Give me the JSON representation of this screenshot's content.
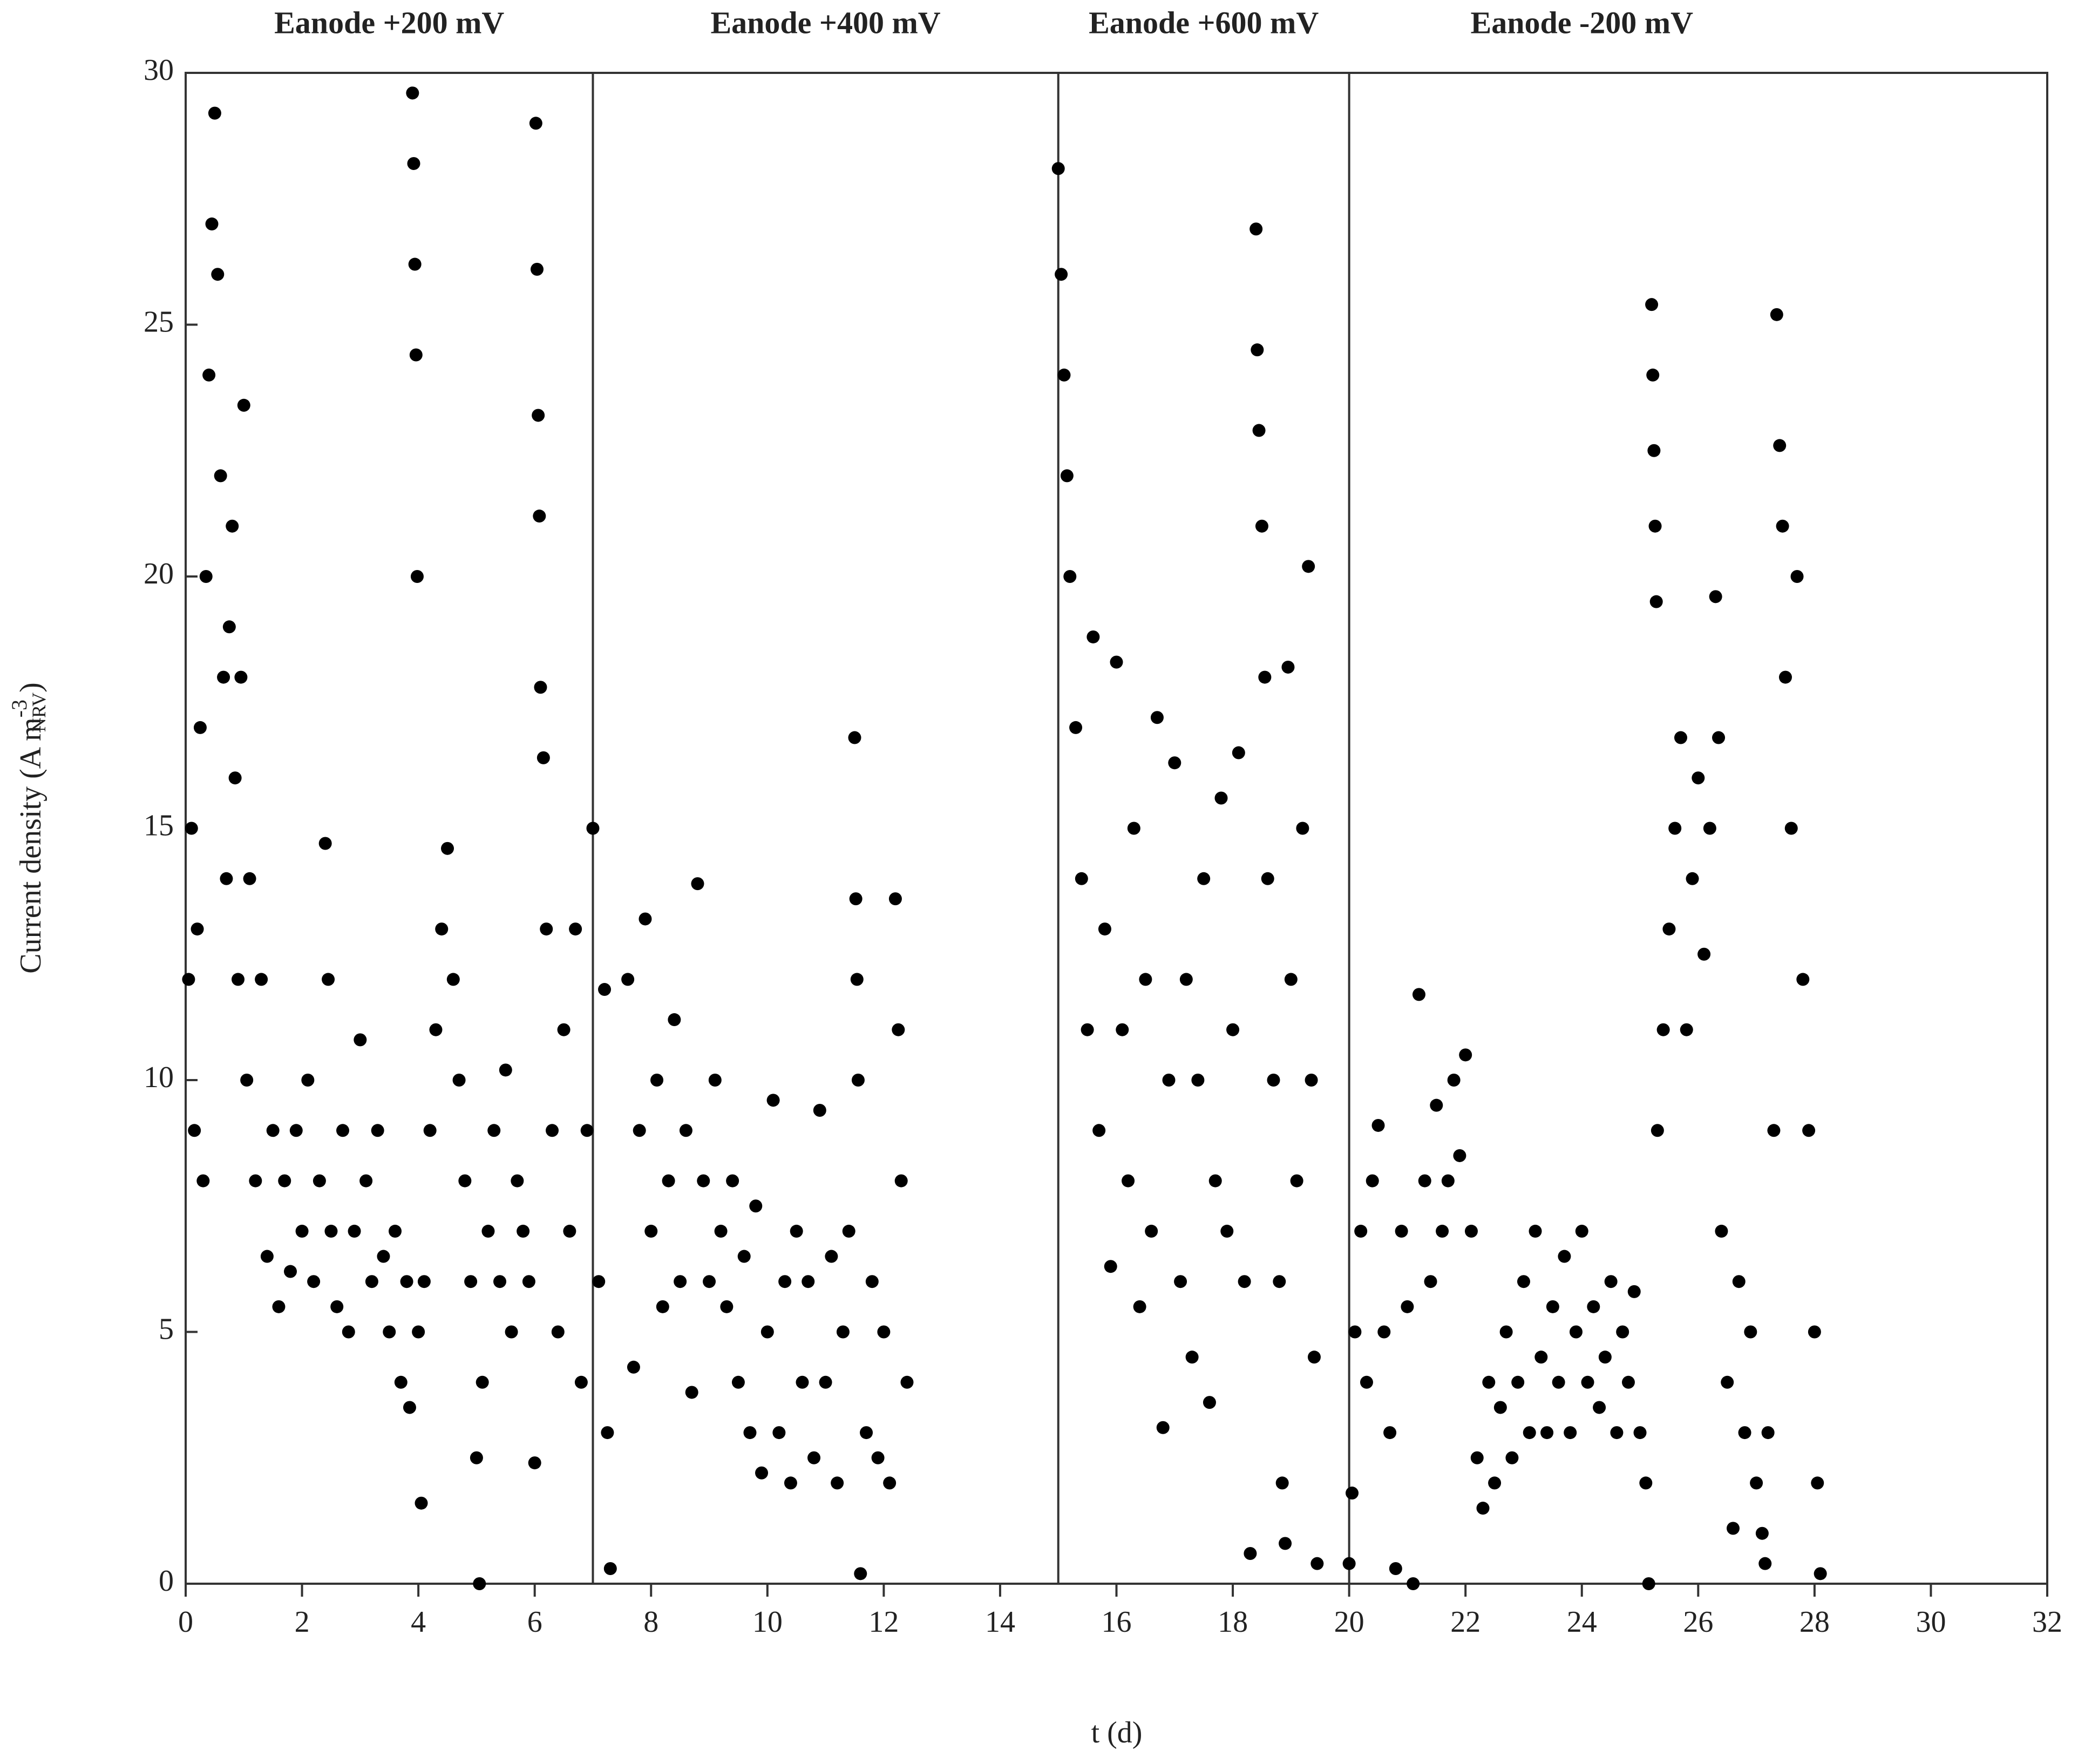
{
  "chart_data": {
    "type": "scatter",
    "x_label": "t (d)",
    "y_label": {
      "text": "Current density (A m",
      "sup": "-3",
      "sub": "NRV",
      "end": ")"
    },
    "color": "#000000",
    "xlim": [
      0,
      32
    ],
    "xticks": [
      0,
      2,
      4,
      6,
      8,
      10,
      12,
      14,
      16,
      18,
      20,
      22,
      24,
      26,
      28,
      30,
      32
    ],
    "ylim": [
      0,
      30
    ],
    "yticks": [
      0,
      5,
      10,
      15,
      20,
      25,
      30
    ],
    "phases": [
      {
        "label": "Eanode +200 mV",
        "start": 0,
        "end": 7
      },
      {
        "label": "Eanode +400 mV",
        "start": 7,
        "end": 15
      },
      {
        "label": "Eanode +600 mV",
        "start": 15,
        "end": 20
      },
      {
        "label": "Eanode -200 mV",
        "start": 20,
        "end": 28
      }
    ],
    "x": [
      0.05,
      0.1,
      0.15,
      0.2,
      0.25,
      0.3,
      0.35,
      0.4,
      0.45,
      0.5,
      0.55,
      0.6,
      0.65,
      0.7,
      0.75,
      0.8,
      0.85,
      0.9,
      0.95,
      1.0,
      1.05,
      1.1,
      1.2,
      1.3,
      1.4,
      1.5,
      1.6,
      1.7,
      1.8,
      1.9,
      2.0,
      2.1,
      2.2,
      2.3,
      2.4,
      2.45,
      2.5,
      2.6,
      2.7,
      2.8,
      2.9,
      3.0,
      3.1,
      3.2,
      3.3,
      3.4,
      3.5,
      3.6,
      3.7,
      3.8,
      3.85,
      3.9,
      3.92,
      3.94,
      3.96,
      3.98,
      4.0,
      4.05,
      4.1,
      4.2,
      4.3,
      4.4,
      4.5,
      4.6,
      4.7,
      4.8,
      4.9,
      5.0,
      5.05,
      5.1,
      5.2,
      5.3,
      5.4,
      5.5,
      5.6,
      5.7,
      5.8,
      5.9,
      6.0,
      6.02,
      6.04,
      6.06,
      6.08,
      6.1,
      6.15,
      6.2,
      6.3,
      6.4,
      6.5,
      6.6,
      6.7,
      6.8,
      6.9,
      7.0,
      7.1,
      7.2,
      7.25,
      7.3,
      7.6,
      7.7,
      7.8,
      7.9,
      8.0,
      8.1,
      8.2,
      8.3,
      8.4,
      8.5,
      8.6,
      8.7,
      8.8,
      8.9,
      9.0,
      9.1,
      9.2,
      9.3,
      9.4,
      9.5,
      9.6,
      9.7,
      9.8,
      9.9,
      10.0,
      10.1,
      10.2,
      10.3,
      10.4,
      10.5,
      10.6,
      10.7,
      10.8,
      10.9,
      11.0,
      11.1,
      11.2,
      11.3,
      11.4,
      11.5,
      11.52,
      11.54,
      11.56,
      11.6,
      11.7,
      11.8,
      11.9,
      12.0,
      12.1,
      12.2,
      12.25,
      12.3,
      12.4,
      15.0,
      15.05,
      15.1,
      15.15,
      15.2,
      15.3,
      15.4,
      15.5,
      15.6,
      15.7,
      15.8,
      15.9,
      16.0,
      16.1,
      16.2,
      16.3,
      16.4,
      16.5,
      16.6,
      16.7,
      16.8,
      16.9,
      17.0,
      17.1,
      17.2,
      17.3,
      17.4,
      17.5,
      17.6,
      17.7,
      17.8,
      17.9,
      18.0,
      18.1,
      18.2,
      18.3,
      18.4,
      18.42,
      18.45,
      18.5,
      18.55,
      18.6,
      18.7,
      18.8,
      18.85,
      18.9,
      18.95,
      19.0,
      19.1,
      19.2,
      19.3,
      19.35,
      19.4,
      19.45,
      20.0,
      20.05,
      20.1,
      20.2,
      20.3,
      20.4,
      20.5,
      20.6,
      20.7,
      20.8,
      20.9,
      21.0,
      21.1,
      21.2,
      21.3,
      21.4,
      21.5,
      21.6,
      21.7,
      21.8,
      21.9,
      22.0,
      22.1,
      22.2,
      22.3,
      22.4,
      22.5,
      22.6,
      22.7,
      22.8,
      22.9,
      23.0,
      23.1,
      23.2,
      23.3,
      23.4,
      23.5,
      23.6,
      23.7,
      23.8,
      23.9,
      24.0,
      24.1,
      24.2,
      24.3,
      24.4,
      24.5,
      24.6,
      24.7,
      24.8,
      24.9,
      25.0,
      25.1,
      25.15,
      25.2,
      25.22,
      25.24,
      25.26,
      25.28,
      25.3,
      25.4,
      25.5,
      25.6,
      25.7,
      25.8,
      25.9,
      26.0,
      26.1,
      26.2,
      26.3,
      26.35,
      26.4,
      26.5,
      26.6,
      26.7,
      26.8,
      26.9,
      27.0,
      27.1,
      27.15,
      27.2,
      27.3,
      27.35,
      27.4,
      27.45,
      27.5,
      27.6,
      27.7,
      27.8,
      27.9,
      28.0,
      28.05,
      28.1
    ],
    "values": [
      12,
      15,
      9,
      13,
      17,
      8,
      20,
      24,
      27,
      29.2,
      26,
      22,
      18,
      14,
      19,
      21,
      16,
      12,
      18,
      23.4,
      10,
      14,
      8,
      12,
      6.5,
      9,
      5.5,
      8,
      6.2,
      9,
      7,
      10,
      6,
      8,
      14.7,
      12,
      7,
      5.5,
      9,
      5,
      7,
      10.8,
      8,
      6,
      9,
      6.5,
      5,
      7,
      4,
      6,
      3.5,
      29.6,
      28.2,
      26.2,
      24.4,
      20,
      5,
      1.6,
      6,
      9,
      11,
      13,
      14.6,
      12,
      10,
      8,
      6,
      2.5,
      0,
      4,
      7,
      9,
      6,
      10.2,
      5,
      8,
      7,
      6,
      2.4,
      29,
      26.1,
      23.2,
      21.2,
      17.8,
      16.4,
      13,
      9,
      5,
      11,
      7,
      13,
      4,
      9,
      15,
      6,
      11.8,
      3,
      0.3,
      12,
      4.3,
      9,
      13.2,
      7,
      10,
      5.5,
      8,
      11.2,
      6,
      9,
      3.8,
      13.9,
      8,
      6,
      10,
      7,
      5.5,
      8,
      4,
      6.5,
      3,
      7.5,
      2.2,
      5,
      9.6,
      3,
      6,
      2,
      7,
      4,
      6,
      2.5,
      9.4,
      4,
      6.5,
      2,
      5,
      7,
      16.8,
      13.6,
      12,
      10,
      0.2,
      3,
      6,
      2.5,
      5,
      2,
      13.6,
      11,
      8,
      4,
      28.1,
      26,
      24,
      22,
      20,
      17,
      14,
      11,
      18.8,
      9,
      13,
      6.3,
      18.3,
      11,
      8,
      15,
      5.5,
      12,
      7,
      17.2,
      3.1,
      10,
      16.3,
      6,
      12,
      4.5,
      10,
      14,
      3.6,
      8,
      15.6,
      7,
      11,
      16.5,
      6,
      0.6,
      26.9,
      24.5,
      22.9,
      21,
      18,
      14,
      10,
      6,
      2,
      0.8,
      18.2,
      12,
      8,
      15,
      20.2,
      10,
      4.5,
      0.4,
      0.4,
      1.8,
      5,
      7,
      4,
      8,
      9.1,
      5,
      3,
      0.3,
      7,
      5.5,
      0,
      11.7,
      8,
      6,
      9.5,
      7,
      8,
      10,
      8.5,
      10.5,
      7,
      2.5,
      1.5,
      4,
      2,
      3.5,
      5,
      2.5,
      4,
      6,
      3,
      7,
      4.5,
      3,
      5.5,
      4,
      6.5,
      3,
      5,
      7,
      4,
      5.5,
      3.5,
      4.5,
      6,
      3,
      5,
      4,
      5.8,
      3,
      2,
      0,
      25.4,
      24,
      22.5,
      21,
      19.5,
      9,
      11,
      13,
      15,
      16.8,
      11,
      14,
      16,
      12.5,
      15,
      19.6,
      16.8,
      7,
      4,
      1.1,
      6,
      3,
      5,
      2,
      1,
      0.4,
      3,
      9,
      25.2,
      22.6,
      21,
      18,
      15,
      20,
      12,
      9,
      5,
      2,
      0.2
    ]
  }
}
